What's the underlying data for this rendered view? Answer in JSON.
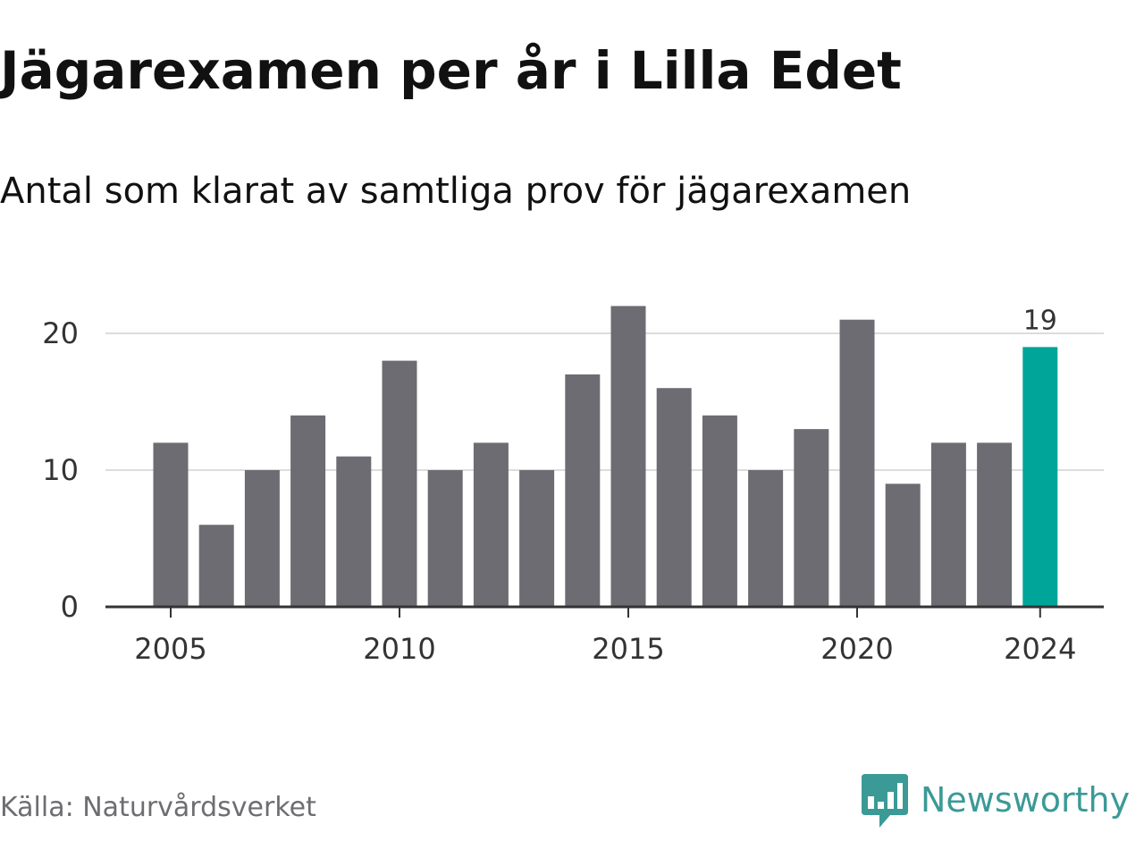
{
  "title": "Jägarexamen per år i Lilla Edet",
  "subtitle": "Antal som klarat av samtliga prov för jägarexamen",
  "source": "Källa: Naturvårdsverket",
  "brand": {
    "name": "Newsworthy",
    "icon": "newsworthy-logo-icon",
    "color": "#3b9a96"
  },
  "colors": {
    "bar": "#6d6c73",
    "highlight": "#00a59a",
    "grid": "#dcdcdc",
    "axis": "#333333",
    "tick_text": "#333333"
  },
  "chart_data": {
    "type": "bar",
    "x": [
      2005,
      2006,
      2007,
      2008,
      2009,
      2010,
      2011,
      2012,
      2013,
      2014,
      2015,
      2016,
      2017,
      2018,
      2019,
      2020,
      2021,
      2022,
      2023,
      2024
    ],
    "values": [
      12,
      6,
      10,
      14,
      11,
      18,
      10,
      12,
      10,
      17,
      22,
      16,
      14,
      10,
      13,
      21,
      9,
      12,
      12,
      19
    ],
    "x_ticks": [
      2005,
      2010,
      2015,
      2020,
      2024
    ],
    "y_ticks": [
      0,
      10,
      20
    ],
    "ylim": [
      0,
      22
    ],
    "grid": true,
    "highlight": {
      "x": 2024,
      "label": "19"
    },
    "xlabel": "",
    "ylabel": ""
  }
}
